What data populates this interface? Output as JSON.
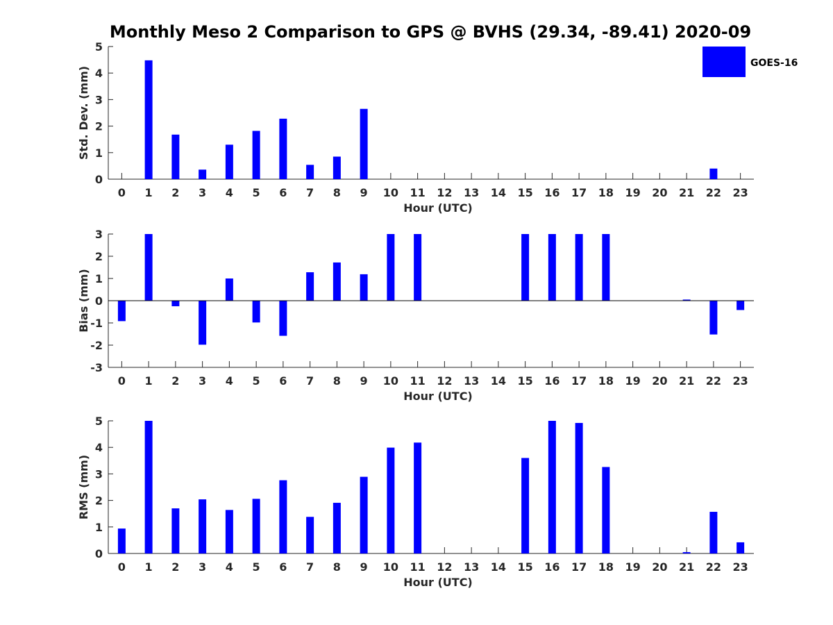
{
  "figure": {
    "title": "Monthly Meso 2 Comparison to GPS @ BVHS (29.34, -89.41) 2020-09",
    "legend": {
      "label": "GOES-16",
      "color": "#0000ff",
      "placement": "top-right"
    }
  },
  "chart_data": [
    {
      "type": "bar",
      "ylabel": "Std. Dev. (mm)",
      "xlabel": "Hour (UTC)",
      "ylim": [
        0,
        5
      ],
      "yticks": [
        0,
        1,
        2,
        3,
        4,
        5
      ],
      "xlim": [
        -0.5,
        23.5
      ],
      "categories": [
        "0",
        "1",
        "2",
        "3",
        "4",
        "5",
        "6",
        "7",
        "8",
        "9",
        "10",
        "11",
        "12",
        "13",
        "14",
        "15",
        "16",
        "17",
        "18",
        "19",
        "20",
        "21",
        "22",
        "23"
      ],
      "series": [
        {
          "name": "GOES-16",
          "color": "#0000ff",
          "values": [
            null,
            4.48,
            1.68,
            0.36,
            1.3,
            1.82,
            2.28,
            0.54,
            0.85,
            2.65,
            null,
            null,
            null,
            null,
            null,
            null,
            null,
            null,
            null,
            null,
            null,
            null,
            0.4,
            null
          ]
        }
      ],
      "zero_line": false
    },
    {
      "type": "bar",
      "ylabel": "Bias (mm)",
      "xlabel": "Hour (UTC)",
      "ylim": [
        -3,
        3
      ],
      "yticks": [
        -3,
        -2,
        -1,
        0,
        1,
        2,
        3
      ],
      "xlim": [
        -0.5,
        23.5
      ],
      "categories": [
        "0",
        "1",
        "2",
        "3",
        "4",
        "5",
        "6",
        "7",
        "8",
        "9",
        "10",
        "11",
        "12",
        "13",
        "14",
        "15",
        "16",
        "17",
        "18",
        "19",
        "20",
        "21",
        "22",
        "23"
      ],
      "series": [
        {
          "name": "GOES-16",
          "color": "#0000ff",
          "values": [
            -0.92,
            3.0,
            -0.25,
            -1.98,
            1.0,
            -0.98,
            -1.58,
            1.28,
            1.72,
            1.19,
            3.0,
            3.0,
            null,
            null,
            null,
            3.0,
            3.0,
            3.0,
            3.0,
            null,
            null,
            0.05,
            -1.52,
            -0.42
          ]
        }
      ],
      "zero_line": true
    },
    {
      "type": "bar",
      "ylabel": "RMS (mm)",
      "xlabel": "Hour (UTC)",
      "ylim": [
        0,
        5
      ],
      "yticks": [
        0,
        1,
        2,
        3,
        4,
        5
      ],
      "xlim": [
        -0.5,
        23.5
      ],
      "categories": [
        "0",
        "1",
        "2",
        "3",
        "4",
        "5",
        "6",
        "7",
        "8",
        "9",
        "10",
        "11",
        "12",
        "13",
        "14",
        "15",
        "16",
        "17",
        "18",
        "19",
        "20",
        "21",
        "22",
        "23"
      ],
      "series": [
        {
          "name": "GOES-16",
          "color": "#0000ff",
          "values": [
            0.94,
            5.0,
            1.7,
            2.04,
            1.64,
            2.06,
            2.76,
            1.38,
            1.91,
            2.89,
            3.99,
            4.18,
            null,
            null,
            null,
            3.6,
            5.0,
            4.92,
            3.26,
            null,
            null,
            0.05,
            1.57,
            0.42
          ]
        }
      ],
      "zero_line": false
    }
  ]
}
